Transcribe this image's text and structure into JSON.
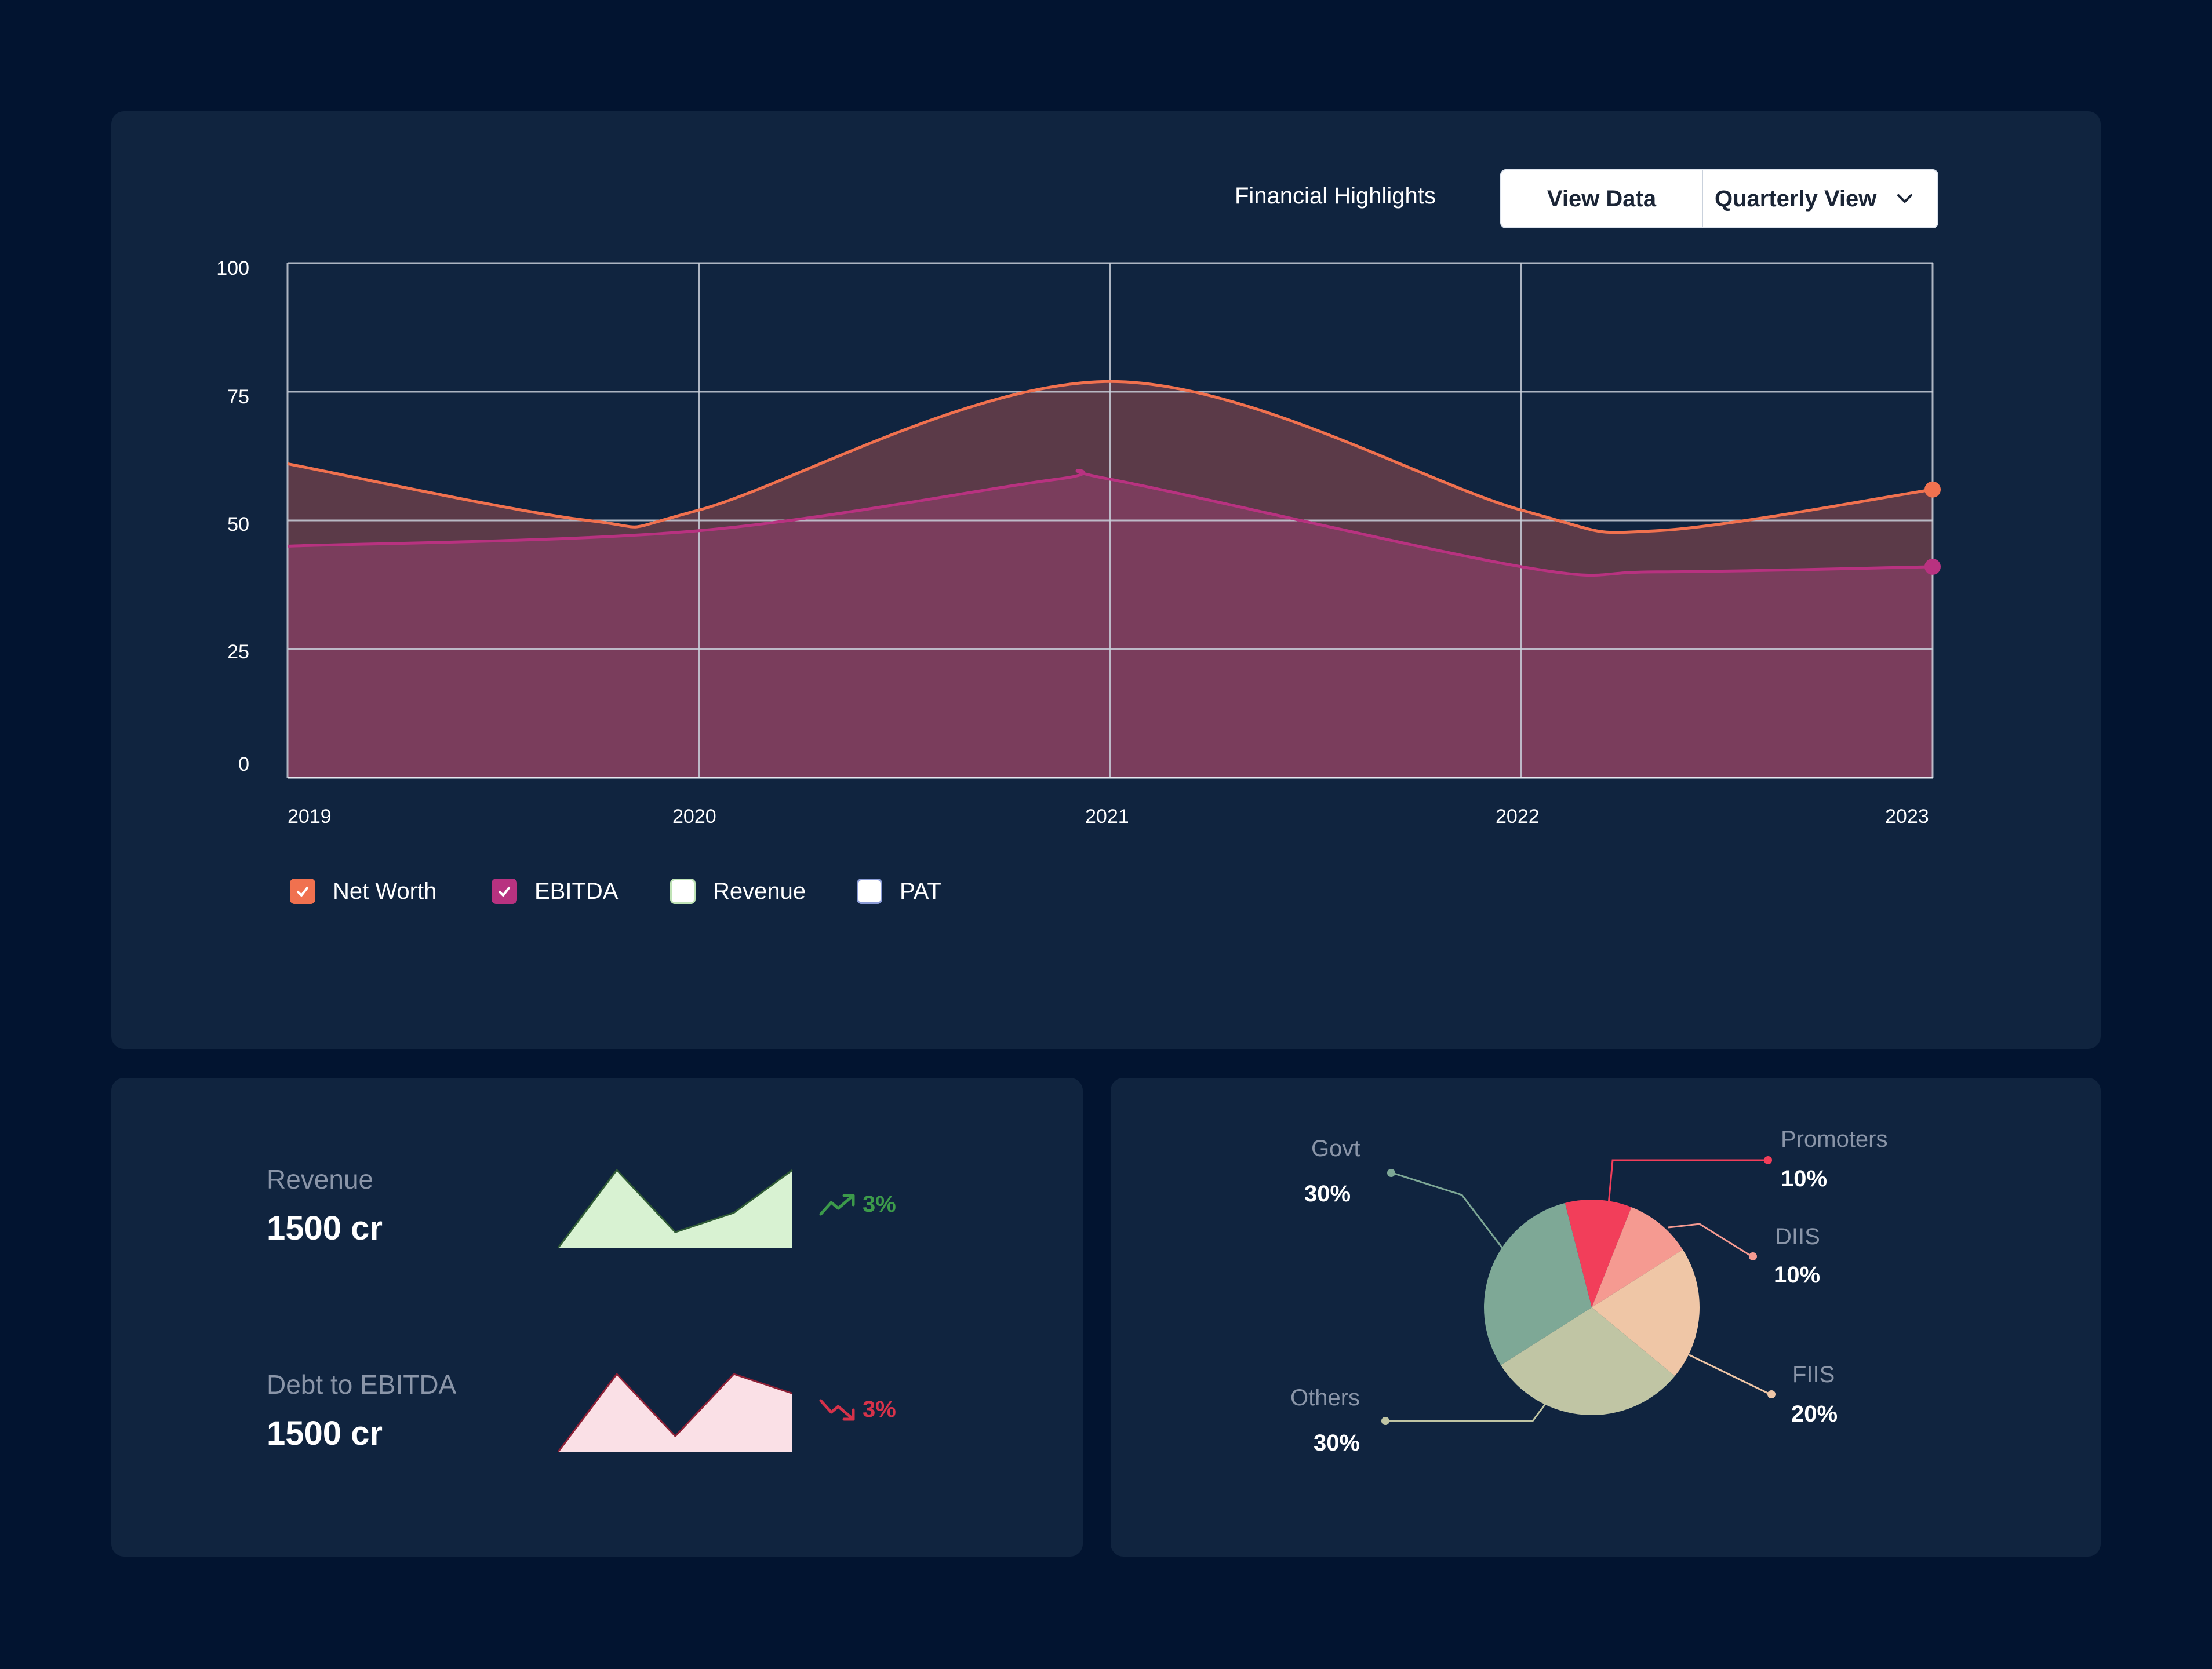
{
  "header": {
    "title": "Financial Highlights",
    "view_data_label": "View Data",
    "view_select_value": "Quarterly View"
  },
  "chart_data": {
    "type": "area",
    "x": [
      "2019",
      "2020",
      "2021",
      "2022",
      "2023"
    ],
    "y_ticks": [
      "100",
      "75",
      "50",
      "25",
      "0"
    ],
    "ylim": [
      0,
      100
    ],
    "grid": true,
    "series": [
      {
        "name": "Net Worth",
        "color": "#f0714f",
        "points": [
          [
            2019,
            61
          ],
          [
            2019.73,
            50
          ],
          [
            2020,
            52
          ],
          [
            2021,
            77
          ],
          [
            2022,
            52
          ],
          [
            2022.33,
            48
          ],
          [
            2023,
            56
          ]
        ]
      },
      {
        "name": "EBITDA",
        "color": "#b83280",
        "points": [
          [
            2019,
            45
          ],
          [
            2020,
            48
          ],
          [
            2020.87,
            58
          ],
          [
            2021,
            58
          ],
          [
            2022,
            41
          ],
          [
            2022.33,
            40
          ],
          [
            2023,
            41
          ]
        ]
      }
    ]
  },
  "legend": [
    {
      "label": "Net Worth",
      "checked": true,
      "color": "#f0714f"
    },
    {
      "label": "EBITDA",
      "checked": true,
      "color": "#b83280"
    },
    {
      "label": "Revenue",
      "checked": false,
      "color": "#d8f2d2"
    },
    {
      "label": "PAT",
      "checked": false,
      "color": "#ffffff"
    }
  ],
  "kpis": [
    {
      "label": "Revenue",
      "value": "1500 cr",
      "change": "3%",
      "direction": "up",
      "color": "#3c9a4a",
      "fill": "#d8f2d2",
      "sparkline": [
        0,
        100,
        20,
        45,
        100
      ]
    },
    {
      "label": "Debt to EBITDA",
      "value": "1500 cr",
      "change": "3%",
      "direction": "down",
      "color": "#d7324a",
      "fill": "#fae0e6",
      "sparkline": [
        0,
        100,
        20,
        100,
        75
      ]
    }
  ],
  "pie": {
    "slices": [
      {
        "label": "Promoters",
        "value": 10,
        "color": "#f23e5a"
      },
      {
        "label": "DIIS",
        "value": 10,
        "color": "#f59a91"
      },
      {
        "label": "FIIS",
        "value": 20,
        "color": "#efc6a6"
      },
      {
        "label": "Others",
        "value": 30,
        "color": "#c0c5a4"
      },
      {
        "label": "Govt",
        "value": 30,
        "color": "#7ea896"
      }
    ],
    "labels": {
      "promoters": {
        "label": "Promoters",
        "pct": "10%"
      },
      "diis": {
        "label": "DIIS",
        "pct": "10%"
      },
      "fiis": {
        "label": "FIIS",
        "pct": "20%"
      },
      "others": {
        "label": "Others",
        "pct": "30%"
      },
      "govt": {
        "label": "Govt",
        "pct": "30%"
      }
    }
  }
}
